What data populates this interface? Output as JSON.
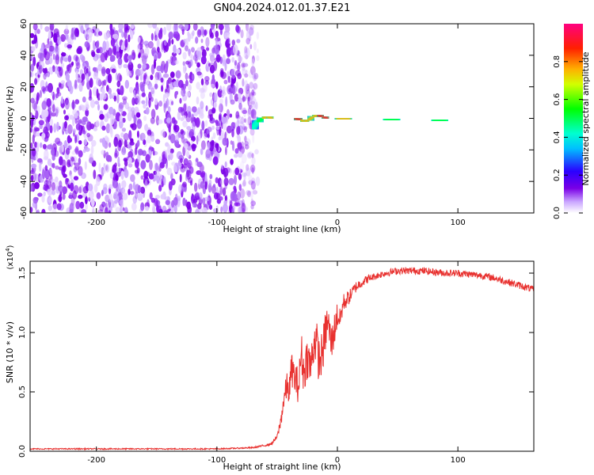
{
  "figure": {
    "title": "GN04.2024.012.01.37.E21"
  },
  "chart_data": [
    {
      "type": "heatmap",
      "xlabel": "Height of straight line (km)",
      "ylabel": "Frequency (Hz)",
      "xlim": [
        -255,
        163
      ],
      "ylim": [
        -60,
        60
      ],
      "xticks": [
        -200,
        -100,
        0,
        100
      ],
      "yticks": [
        -60,
        -40,
        -20,
        0,
        20,
        40,
        60
      ],
      "colorbar": {
        "label": "Normalized spectral amplitude",
        "range": [
          0,
          1
        ],
        "ticks": [
          "0.0",
          "0.2",
          "0.4",
          "0.6",
          "0.8"
        ],
        "colormap": "rainbow",
        "colors": [
          "#ffffff",
          "#7a00e6",
          "#2a00ff",
          "#00ffff",
          "#00ff00",
          "#ffff00",
          "#ff0000",
          "#ff0080"
        ]
      },
      "noise_region": {
        "x_range": [
          -255,
          -70
        ],
        "y_range": [
          -60,
          60
        ],
        "color": "#7a00e6"
      },
      "signal_line": {
        "x": [
          -70,
          -66,
          -62,
          -58,
          -54,
          -50,
          -45,
          -40,
          -35,
          -30,
          -27,
          -24,
          -20,
          -16,
          -12,
          -8,
          -4,
          0,
          10,
          20,
          30,
          40,
          50,
          60,
          70,
          80,
          90,
          100,
          110,
          120,
          130,
          140,
          150,
          163
        ],
        "freq": [
          -6,
          -2,
          0,
          1,
          0,
          0,
          0,
          0,
          0,
          -1,
          -2,
          -1,
          1,
          2,
          1,
          0,
          0,
          0,
          -0.5,
          -0.5,
          -0.5,
          -0.5,
          -1,
          -1,
          -1,
          -1,
          -1.5,
          -1.5,
          -1.5,
          -1.5,
          -1.5,
          -1.5,
          -1.5,
          -1.5
        ],
        "amplitude": [
          0.35,
          0.5,
          0.7,
          0.85,
          0.9,
          0.95,
          1.0,
          0.97,
          0.97,
          0.95,
          0.85,
          0.8,
          0.85,
          0.9,
          0.95,
          0.95,
          0.95,
          0.95,
          0.6,
          0.55,
          0.55,
          0.55,
          0.5,
          0.5,
          0.5,
          0.5,
          0.55,
          0.5,
          0.45,
          0.45,
          0.45,
          0.45,
          0.4,
          0.4
        ]
      }
    },
    {
      "type": "line",
      "xlabel": "Height of straight line (km)",
      "ylabel": "SNR (10 * v/v)",
      "y_multiplier": "(x10",
      "y_multiplier_exp": "4",
      "y_multiplier_close": ")",
      "xlim": [
        -255,
        163
      ],
      "ylim": [
        0,
        1.6
      ],
      "xticks": [
        -200,
        -100,
        0,
        100
      ],
      "yticks": [
        "0.0",
        "0.5",
        "1.0",
        "1.5"
      ],
      "series": [
        {
          "color": "#e8312f",
          "x": [
            -255,
            -200,
            -150,
            -100,
            -70,
            -55,
            -50,
            -47,
            -45,
            -42,
            -40,
            -38,
            -35,
            -32,
            -30,
            -28,
            -25,
            -22,
            -20,
            -18,
            -15,
            -12,
            -10,
            -8,
            -5,
            -2,
            0,
            2,
            5,
            10,
            15,
            20,
            25,
            30,
            40,
            50,
            60,
            70,
            80,
            90,
            100,
            110,
            120,
            130,
            140,
            150,
            163
          ],
          "y": [
            0.02,
            0.02,
            0.02,
            0.02,
            0.03,
            0.06,
            0.12,
            0.25,
            0.4,
            0.55,
            0.5,
            0.7,
            0.6,
            0.55,
            0.85,
            0.65,
            0.8,
            0.7,
            0.9,
            0.95,
            0.75,
            0.85,
            1.0,
            1.1,
            0.9,
            1.05,
            1.15,
            1.1,
            1.25,
            1.3,
            1.38,
            1.42,
            1.45,
            1.47,
            1.5,
            1.52,
            1.52,
            1.52,
            1.51,
            1.5,
            1.5,
            1.49,
            1.48,
            1.46,
            1.43,
            1.4,
            1.36
          ],
          "noise": [
            0.005,
            0.005,
            0.005,
            0.005,
            0.006,
            0.01,
            0.02,
            0.06,
            0.08,
            0.12,
            0.12,
            0.14,
            0.15,
            0.15,
            0.18,
            0.18,
            0.18,
            0.18,
            0.2,
            0.2,
            0.2,
            0.18,
            0.18,
            0.16,
            0.16,
            0.14,
            0.12,
            0.1,
            0.08,
            0.06,
            0.05,
            0.04,
            0.035,
            0.03,
            0.03,
            0.03,
            0.03,
            0.03,
            0.03,
            0.03,
            0.03,
            0.03,
            0.03,
            0.03,
            0.03,
            0.03,
            0.03
          ]
        }
      ]
    }
  ]
}
